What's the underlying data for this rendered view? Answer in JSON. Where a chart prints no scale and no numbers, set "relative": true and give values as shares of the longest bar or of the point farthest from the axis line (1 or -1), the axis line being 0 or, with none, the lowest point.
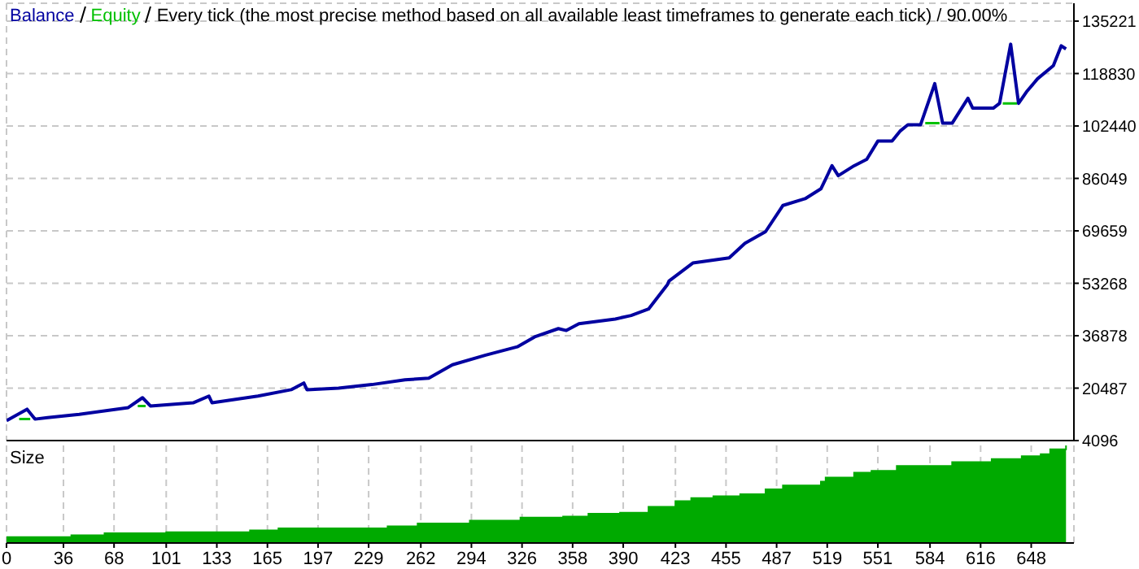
{
  "chart_data": [
    {
      "type": "line",
      "title": "Every tick (the most precise method based on all available least timeframes to generate each tick) / 90.00%",
      "legend": "top left",
      "grid": true,
      "tick_labels": "y",
      "xlim": [
        0,
        675
      ],
      "ylim": [
        4096,
        140800
      ],
      "yticks": [
        4096,
        20487,
        36878,
        53268,
        69659,
        86049,
        102440,
        118830,
        135221
      ],
      "x": [
        0,
        13,
        18,
        26,
        46,
        77,
        86,
        91,
        118,
        128,
        130,
        159,
        180,
        188,
        190,
        210,
        231,
        252,
        267,
        282,
        303,
        323,
        334,
        349,
        354,
        362,
        385,
        395,
        406,
        418,
        419,
        434,
        457,
        467,
        480,
        491,
        505,
        515,
        522,
        526,
        536,
        544,
        551,
        560,
        565,
        570,
        578,
        587,
        592,
        598,
        608,
        611,
        624,
        628,
        635,
        640,
        645,
        652,
        662,
        667,
        670
      ],
      "series": [
        {
          "name": "Equity",
          "color": "#00c000",
          "x": [
            8,
            15,
            50,
            83,
            88,
            100,
            581,
            590,
            600,
            630,
            639
          ],
          "values": [
            10800,
            10800,
            null,
            14900,
            14900,
            null,
            103300,
            103300,
            null,
            109500,
            109500
          ]
        },
        {
          "name": "Balance",
          "color": "#0000a0",
          "values": [
            10300,
            13900,
            10800,
            11300,
            12300,
            14400,
            17500,
            14900,
            15900,
            18000,
            15900,
            18000,
            20000,
            22100,
            20000,
            20500,
            21600,
            23100,
            23600,
            27800,
            30800,
            33400,
            36500,
            39100,
            38500,
            40600,
            42100,
            43200,
            45200,
            52900,
            54000,
            59600,
            61200,
            65800,
            69400,
            77600,
            79700,
            82800,
            90000,
            86900,
            90000,
            92000,
            97700,
            97700,
            100800,
            102800,
            102800,
            115700,
            103300,
            103300,
            111100,
            108000,
            108000,
            109500,
            128000,
            109500,
            113100,
            117200,
            121300,
            127500,
            126500
          ]
        }
      ]
    },
    {
      "type": "area",
      "title": "Size",
      "relative": true,
      "grid": "x",
      "tick_labels": "x",
      "xlim": [
        0,
        675
      ],
      "xticks": [
        0,
        36,
        68,
        101,
        133,
        165,
        197,
        229,
        262,
        294,
        326,
        358,
        390,
        423,
        455,
        487,
        519,
        551,
        584,
        616,
        648
      ],
      "x": [
        0,
        41,
        62,
        101,
        154,
        172,
        241,
        260,
        293,
        325,
        352,
        368,
        388,
        406,
        423,
        433,
        447,
        464,
        480,
        491,
        515,
        518,
        536,
        547,
        563,
        598,
        623,
        642,
        654,
        660,
        670
      ],
      "series": [
        {
          "color": "#00aa00",
          "values": [
            0.06,
            0.08,
            0.1,
            0.11,
            0.13,
            0.15,
            0.17,
            0.2,
            0.23,
            0.26,
            0.27,
            0.3,
            0.31,
            0.37,
            0.43,
            0.46,
            0.48,
            0.5,
            0.55,
            0.59,
            0.63,
            0.67,
            0.72,
            0.74,
            0.79,
            0.83,
            0.86,
            0.89,
            0.91,
            0.96,
            1
          ]
        }
      ]
    }
  ]
}
